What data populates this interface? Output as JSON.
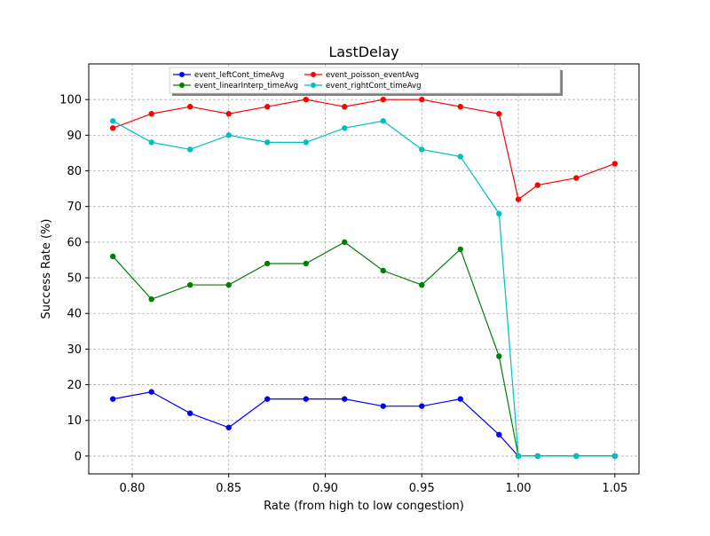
{
  "chart_data": {
    "type": "line",
    "title": "LastDelay",
    "xlabel": "Rate (from high to low congestion)",
    "ylabel": "Success Rate (%)",
    "xlim": [
      0.7775,
      1.0625
    ],
    "ylim": [
      -5,
      110
    ],
    "xticks": [
      0.8,
      0.85,
      0.9,
      0.95,
      1.0,
      1.05
    ],
    "xtick_labels": [
      "0.80",
      "0.85",
      "0.90",
      "0.95",
      "1.00",
      "1.05"
    ],
    "yticks": [
      0,
      10,
      20,
      30,
      40,
      50,
      60,
      70,
      80,
      90,
      100
    ],
    "ytick_labels": [
      "0",
      "10",
      "20",
      "30",
      "40",
      "50",
      "60",
      "70",
      "80",
      "90",
      "100"
    ],
    "grid": true,
    "legend_position": "top-center",
    "series": [
      {
        "name": "event_leftCont_timeAvg",
        "color": "#0000ff",
        "x": [
          0.79,
          0.81,
          0.83,
          0.85,
          0.87,
          0.89,
          0.91,
          0.93,
          0.95,
          0.97,
          0.99,
          1.0,
          1.01,
          1.03,
          1.05
        ],
        "y": [
          16,
          18,
          12,
          8,
          16,
          16,
          16,
          14,
          14,
          16,
          6,
          0,
          0,
          0,
          0
        ]
      },
      {
        "name": "event_linearInterp_timeAvg",
        "color": "#008000",
        "x": [
          0.79,
          0.81,
          0.83,
          0.85,
          0.87,
          0.89,
          0.91,
          0.93,
          0.95,
          0.97,
          0.99,
          1.0,
          1.01,
          1.03,
          1.05
        ],
        "y": [
          56,
          44,
          48,
          48,
          54,
          54,
          60,
          52,
          48,
          58,
          28,
          0,
          0,
          0,
          0
        ]
      },
      {
        "name": "event_poisson_eventAvg",
        "color": "#ff0000",
        "x": [
          0.79,
          0.81,
          0.83,
          0.85,
          0.87,
          0.89,
          0.91,
          0.93,
          0.95,
          0.97,
          0.99,
          1.0,
          1.01,
          1.03,
          1.05
        ],
        "y": [
          92,
          96,
          98,
          96,
          98,
          100,
          98,
          100,
          100,
          98,
          96,
          72,
          76,
          78,
          82
        ]
      },
      {
        "name": "event_rightCont_timeAvg",
        "color": "#00bfbf",
        "x": [
          0.79,
          0.81,
          0.83,
          0.85,
          0.87,
          0.89,
          0.91,
          0.93,
          0.95,
          0.97,
          0.99,
          1.0,
          1.01,
          1.03,
          1.05
        ],
        "y": [
          94,
          88,
          86,
          90,
          88,
          88,
          92,
          94,
          86,
          84,
          68,
          0,
          0,
          0,
          0
        ]
      }
    ]
  }
}
